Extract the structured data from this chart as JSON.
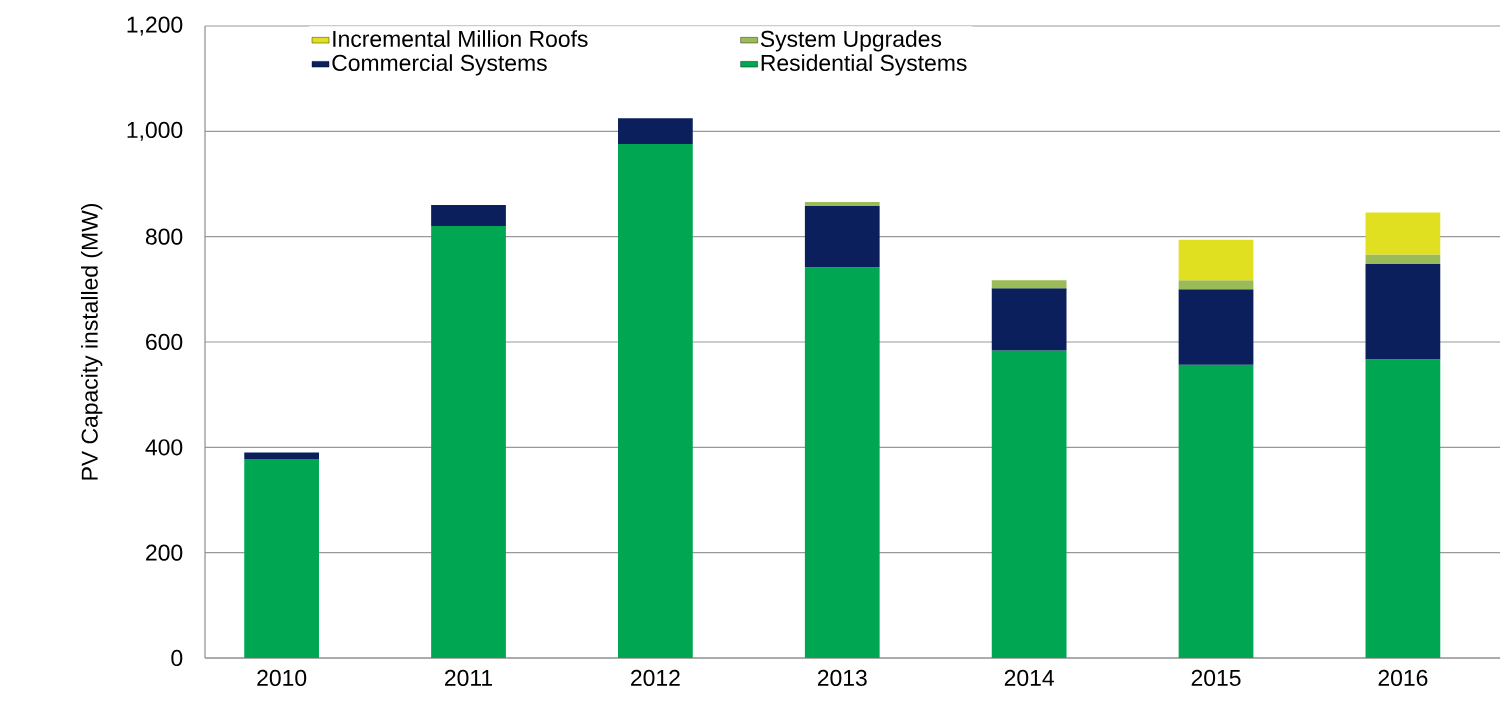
{
  "chart_data": {
    "type": "bar",
    "stacked": true,
    "ylabel": "PV Capacity installed (MW)",
    "categories": [
      "2010",
      "2011",
      "2012",
      "2013",
      "2014",
      "2015",
      "2016"
    ],
    "series": [
      {
        "name": "Residential Systems",
        "color": "#00a651",
        "values": [
          378,
          820,
          976,
          742,
          584,
          557,
          567
        ]
      },
      {
        "name": "Commercial Systems",
        "color": "#0a1f5c",
        "values": [
          12,
          40,
          49,
          116,
          118,
          143,
          181
        ]
      },
      {
        "name": "System Upgrades",
        "color": "#9bbb59",
        "values": [
          null,
          null,
          null,
          8,
          15,
          17,
          18
        ]
      },
      {
        "name": "Incremental Million Roofs",
        "color": "#e0e020",
        "values": [
          null,
          null,
          null,
          null,
          null,
          77,
          80
        ]
      }
    ],
    "ylim": [
      0,
      1200
    ],
    "yticks": [
      0,
      200,
      400,
      600,
      800,
      {
        "value": 1000,
        "label": "1,000"
      },
      {
        "value": 1200,
        "label": "1,200"
      }
    ],
    "grid": "y",
    "legend": "top"
  }
}
